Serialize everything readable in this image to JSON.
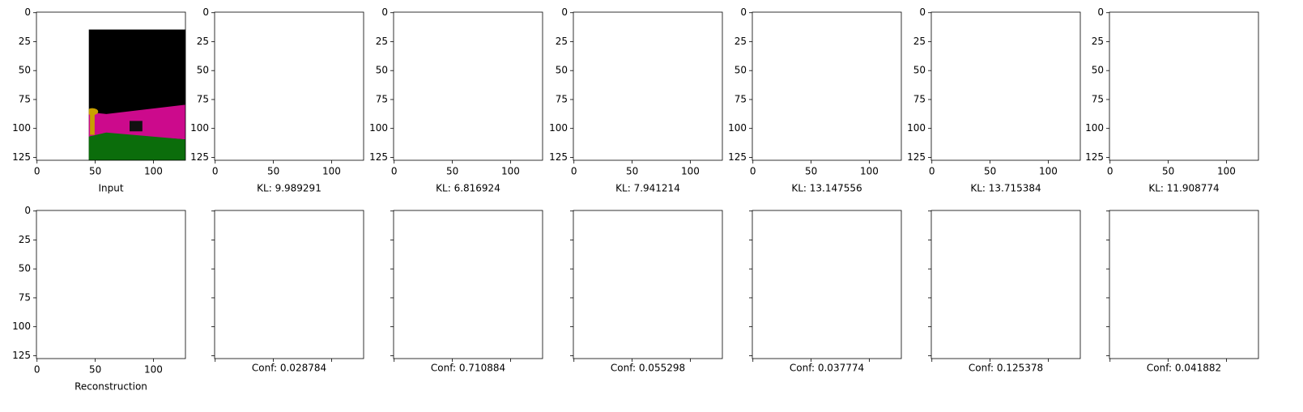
{
  "chart_data": {
    "type": "image",
    "xlim": [
      -0.5,
      127.5
    ],
    "ylim": [
      127.5,
      -0.5
    ],
    "xticks": [
      0,
      50,
      100
    ],
    "yticks": [
      0,
      25,
      50,
      75,
      100,
      125
    ],
    "panels": [
      {
        "xlabel": "Input",
        "tick_labels": true
      },
      {
        "xlabel": "KL: 9.989291",
        "tick_labels": true
      },
      {
        "xlabel": "KL: 6.816924",
        "tick_labels": true
      },
      {
        "xlabel": "KL: 7.941214",
        "tick_labels": true
      },
      {
        "xlabel": "KL: 13.147556",
        "tick_labels": true
      },
      {
        "xlabel": "KL: 13.715384",
        "tick_labels": true
      },
      {
        "xlabel": "KL: 11.908774",
        "tick_labels": true
      },
      {
        "xlabel": "Reconstruction",
        "tick_labels": true
      },
      {
        "xlabel": "Conf: 0.028784",
        "tick_labels": false
      },
      {
        "xlabel": "Conf: 0.710884",
        "tick_labels": false
      },
      {
        "xlabel": "Conf: 0.055298",
        "tick_labels": false
      },
      {
        "xlabel": "Conf: 0.037774",
        "tick_labels": false
      },
      {
        "xlabel": "Conf: 0.125378",
        "tick_labels": false
      },
      {
        "xlabel": "Conf: 0.041882",
        "tick_labels": false
      }
    ]
  }
}
